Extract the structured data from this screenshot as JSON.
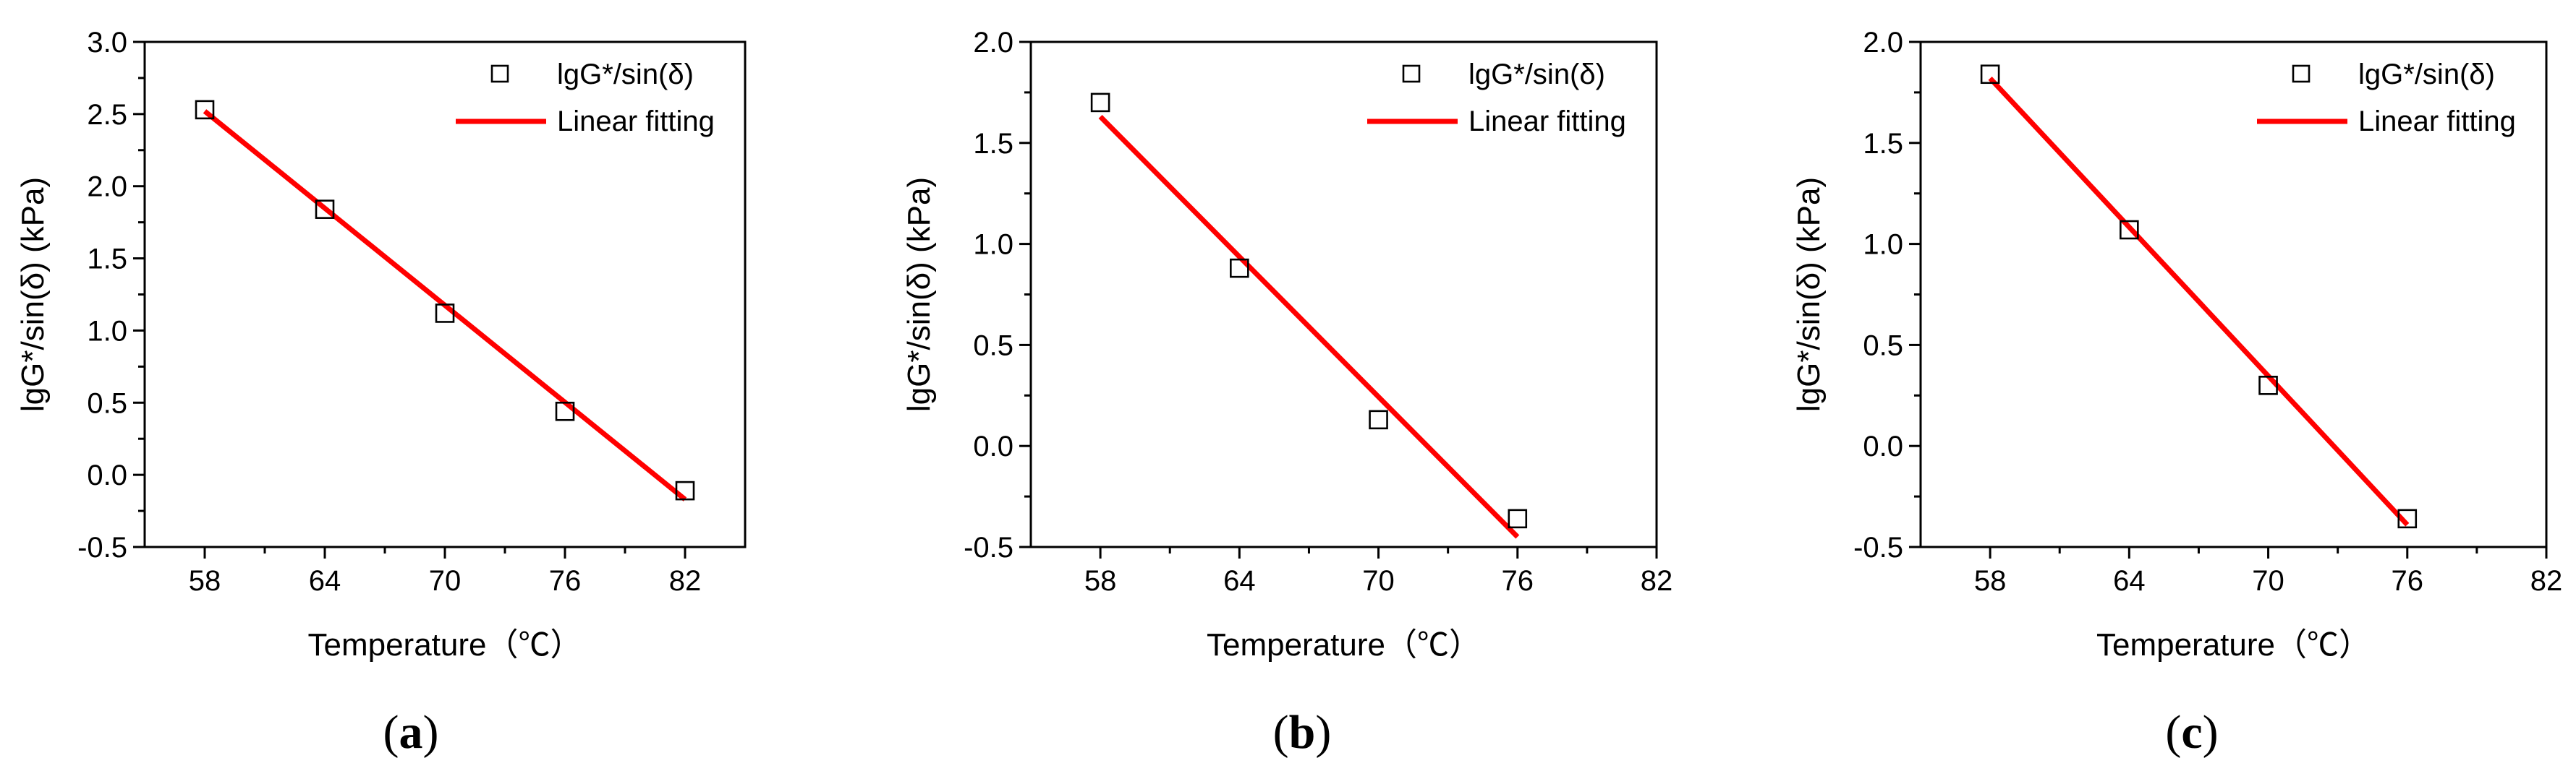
{
  "chart_data": [
    {
      "panel": "a",
      "type": "scatter",
      "xlabel": "Temperature（℃）",
      "ylabel": "lgG*/sin(δ) (kPa)",
      "xlim": [
        55,
        85
      ],
      "ylim": [
        -0.5,
        3.0
      ],
      "xticks": [
        58,
        64,
        70,
        76,
        82
      ],
      "xtick_labels": [
        "58",
        "64",
        "70",
        "76",
        "82"
      ],
      "yticks": [
        -0.5,
        0.0,
        0.5,
        1.0,
        1.5,
        2.0,
        2.5,
        3.0
      ],
      "ytick_labels": [
        "-0.5",
        "0.0",
        "0.5",
        "1.0",
        "1.5",
        "2.0",
        "2.5",
        "3.0"
      ],
      "y_minor_step": 0.25,
      "series": [
        {
          "name": "lgG*/sin(δ)",
          "marker": "open-square",
          "x": [
            58,
            64,
            70,
            76,
            82
          ],
          "y": [
            2.53,
            1.84,
            1.12,
            0.44,
            -0.11
          ]
        },
        {
          "name": "Linear fitting",
          "kind": "line",
          "color": "#ff0000",
          "x": [
            58,
            82
          ],
          "y": [
            2.52,
            -0.17
          ]
        }
      ],
      "legend": "top-right",
      "panel_label": "(a)"
    },
    {
      "panel": "b",
      "type": "scatter",
      "xlabel": "Temperature（℃）",
      "ylabel": "lgG*/sin(δ) (kPa)",
      "xlim": [
        55,
        82
      ],
      "ylim": [
        -0.5,
        2.0
      ],
      "xticks": [
        58,
        64,
        70,
        76,
        82
      ],
      "xtick_labels": [
        "58",
        "64",
        "70",
        "76",
        "82"
      ],
      "yticks": [
        -0.5,
        0.0,
        0.5,
        1.0,
        1.5,
        2.0
      ],
      "ytick_labels": [
        "-0.5",
        "0.0",
        "0.5",
        "1.0",
        "1.5",
        "2.0"
      ],
      "y_minor_step": 0.25,
      "series": [
        {
          "name": "lgG*/sin(δ)",
          "marker": "open-square",
          "x": [
            58,
            64,
            70,
            76
          ],
          "y": [
            1.7,
            0.88,
            0.13,
            -0.36
          ]
        },
        {
          "name": "Linear fitting",
          "kind": "line",
          "color": "#ff0000",
          "x": [
            58,
            76
          ],
          "y": [
            1.63,
            -0.45
          ]
        }
      ],
      "legend": "top-right",
      "panel_label": "(b)"
    },
    {
      "panel": "c",
      "type": "scatter",
      "xlabel": "Temperature（℃）",
      "ylabel": "lgG*/sin(δ) (kPa)",
      "xlim": [
        55,
        82
      ],
      "ylim": [
        -0.5,
        2.0
      ],
      "xticks": [
        58,
        64,
        70,
        76,
        82
      ],
      "xtick_labels": [
        "58",
        "64",
        "70",
        "76",
        "82"
      ],
      "yticks": [
        -0.5,
        0.0,
        0.5,
        1.0,
        1.5,
        2.0
      ],
      "ytick_labels": [
        "-0.5",
        "0.0",
        "0.5",
        "1.0",
        "1.5",
        "2.0"
      ],
      "y_minor_step": 0.25,
      "series": [
        {
          "name": "lgG*/sin(δ)",
          "marker": "open-square",
          "x": [
            58,
            64,
            70,
            76
          ],
          "y": [
            1.84,
            1.07,
            0.3,
            -0.36
          ]
        },
        {
          "name": "Linear fitting",
          "kind": "line",
          "color": "#ff0000",
          "x": [
            58,
            76
          ],
          "y": [
            1.82,
            -0.39
          ]
        }
      ],
      "legend": "top-right",
      "panel_label": "(c)"
    }
  ]
}
